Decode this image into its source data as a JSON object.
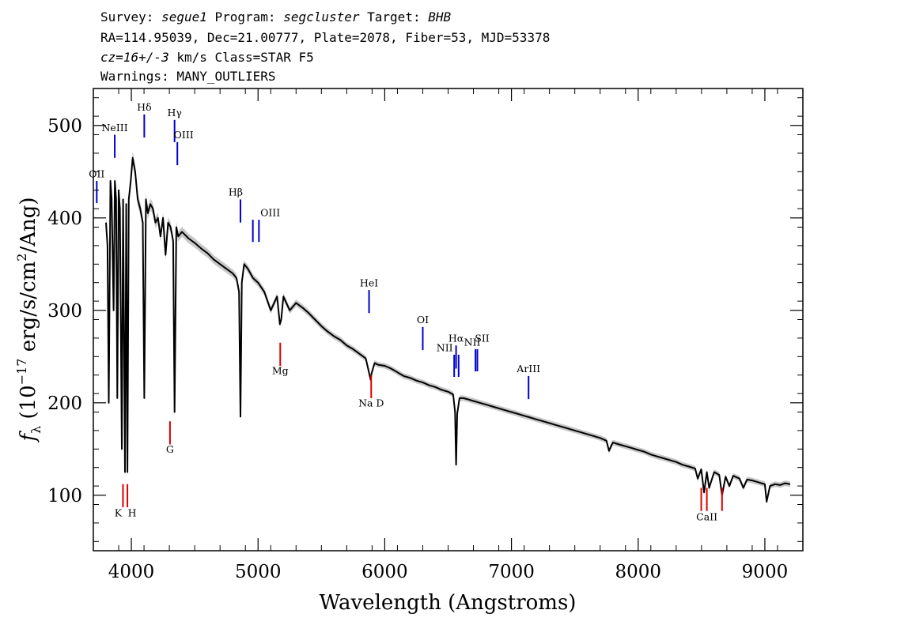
{
  "header": {
    "line1": {
      "survey_label": "Survey: ",
      "survey": "segue1",
      "program_label": " Program: ",
      "program": "segcluster",
      "target_label": " Target: ",
      "target": "BHB"
    },
    "line2": "RA=114.95039, Dec=21.00777, Plate=2078, Fiber=53, MJD=53378",
    "line3": {
      "cz": "cz=16+/-3",
      "rest": " km/s Class=STAR F5"
    },
    "line4": "Warnings: MANY_OUTLIERS"
  },
  "colors": {
    "emission": "#0000cc",
    "absorption": "#dd0000",
    "spectrum": "#000000",
    "error_band": "#b0b0b0"
  },
  "chart_data": {
    "type": "line",
    "title": "",
    "xlabel": "Wavelength (Angstroms)",
    "ylabel": "f_λ (10^-17 erg/s/cm^2/Ang)",
    "ylabel_parts": {
      "f": "f",
      "lambda_sub": "λ",
      "main": " (10",
      "exp1": "−17",
      "middle": " erg/s/cm",
      "exp2": "2",
      "end": "/Ang)"
    },
    "xlim": [
      3700,
      9300
    ],
    "ylim": [
      40,
      540
    ],
    "x_ticks": [
      4000,
      5000,
      6000,
      7000,
      8000,
      9000
    ],
    "y_ticks": [
      100,
      200,
      300,
      400,
      500
    ],
    "grid": false,
    "series": [
      {
        "x": [
          3800,
          3812,
          3822,
          3835,
          3845,
          3860,
          3870,
          3880,
          3889,
          3900,
          3910,
          3925,
          3935,
          3950,
          3960,
          3969,
          3980,
          3995,
          4010,
          4030,
          4050,
          4070,
          4090,
          4102,
          4115,
          4130,
          4150,
          4170,
          4190,
          4210,
          4230,
          4250,
          4270,
          4290,
          4310,
          4330,
          4341,
          4355,
          4370,
          4400,
          4450,
          4500,
          4550,
          4600,
          4650,
          4700,
          4750,
          4800,
          4830,
          4850,
          4861,
          4872,
          4890,
          4920,
          4960,
          5000,
          5050,
          5100,
          5150,
          5172,
          5183,
          5200,
          5250,
          5300,
          5350,
          5400,
          5450,
          5500,
          5550,
          5600,
          5650,
          5700,
          5750,
          5800,
          5850,
          5889,
          5896,
          5920,
          5950,
          6000,
          6050,
          6100,
          6150,
          6200,
          6250,
          6300,
          6350,
          6400,
          6450,
          6500,
          6540,
          6555,
          6563,
          6572,
          6590,
          6620,
          6650,
          6700,
          6750,
          6800,
          6850,
          6900,
          6950,
          7000,
          7050,
          7100,
          7150,
          7200,
          7250,
          7300,
          7350,
          7400,
          7450,
          7500,
          7550,
          7600,
          7650,
          7700,
          7750,
          7770,
          7800,
          7850,
          7900,
          7950,
          8000,
          8050,
          8100,
          8150,
          8200,
          8250,
          8300,
          8350,
          8400,
          8450,
          8470,
          8498,
          8520,
          8542,
          8560,
          8600,
          8640,
          8662,
          8690,
          8720,
          8750,
          8800,
          8830,
          8860,
          8900,
          8950,
          9000,
          9014,
          9040,
          9080,
          9120,
          9160,
          9200
        ],
        "y": [
          395,
          370,
          200,
          440,
          420,
          300,
          440,
          420,
          205,
          430,
          410,
          150,
          420,
          125,
          415,
          125,
          420,
          440,
          465,
          450,
          420,
          410,
          395,
          205,
          420,
          405,
          415,
          410,
          395,
          400,
          380,
          400,
          360,
          395,
          390,
          375,
          190,
          390,
          380,
          385,
          378,
          373,
          367,
          362,
          355,
          350,
          345,
          340,
          335,
          320,
          185,
          330,
          350,
          345,
          335,
          330,
          320,
          300,
          315,
          285,
          290,
          315,
          300,
          308,
          303,
          297,
          290,
          283,
          277,
          272,
          268,
          262,
          258,
          253,
          248,
          225,
          232,
          243,
          241,
          240,
          237,
          233,
          229,
          227,
          224,
          222,
          219,
          217,
          214,
          212,
          209,
          190,
          133,
          188,
          205,
          205,
          204,
          202,
          200,
          198,
          196,
          194,
          192,
          190,
          188,
          186,
          184,
          182,
          180,
          178,
          176,
          174,
          172,
          170,
          168,
          166,
          164,
          162,
          159,
          148,
          157,
          155,
          153,
          151,
          149,
          147,
          144,
          142,
          140,
          138,
          136,
          133,
          131,
          129,
          118,
          128,
          103,
          125,
          108,
          125,
          122,
          100,
          120,
          110,
          121,
          118,
          108,
          117,
          116,
          114,
          112,
          93,
          110,
          112,
          111,
          113,
          112
        ]
      }
    ],
    "error_band": {
      "x": [
        3800,
        4000,
        4500,
        5000,
        6000,
        7000,
        8000,
        9000,
        9200
      ],
      "half_width": [
        8,
        7,
        5,
        4,
        3,
        3,
        3,
        3,
        3
      ]
    },
    "line_markers": [
      {
        "label": "OII",
        "wave": 3727,
        "y_top": 440,
        "y_bottom": 416,
        "color": "emission",
        "label_y": 444,
        "label_dx": 0
      },
      {
        "label": "NeIII",
        "wave": 3869,
        "y_top": 490,
        "y_bottom": 465,
        "color": "emission",
        "label_y": 494,
        "label_dx": 0
      },
      {
        "label": "Hδ",
        "wave": 4102,
        "y_top": 512,
        "y_bottom": 487,
        "color": "emission",
        "label_y": 516,
        "label_dx": 0
      },
      {
        "label": "Hγ",
        "wave": 4341,
        "y_top": 506,
        "y_bottom": 482,
        "color": "emission",
        "label_y": 510,
        "label_dx": 0
      },
      {
        "label": "OIII",
        "wave": 4363,
        "y_top": 482,
        "y_bottom": 457,
        "color": "emission",
        "label_y": 486,
        "label_dx": 8
      },
      {
        "label": "Hβ",
        "wave": 4861,
        "y_top": 420,
        "y_bottom": 395,
        "color": "emission",
        "label_y": 424,
        "label_dx": -6
      },
      {
        "label": "OIII",
        "wave": 4959,
        "y_top": 398,
        "y_bottom": 374,
        "color": "emission",
        "label_y": 402,
        "label_dx": 22
      },
      {
        "label": "",
        "wave": 5007,
        "y_top": 398,
        "y_bottom": 374,
        "color": "emission",
        "label_y": 0,
        "label_dx": 0
      },
      {
        "label": "HeI",
        "wave": 5876,
        "y_top": 322,
        "y_bottom": 297,
        "color": "emission",
        "label_y": 326,
        "label_dx": 0
      },
      {
        "label": "OI",
        "wave": 6300,
        "y_top": 282,
        "y_bottom": 257,
        "color": "emission",
        "label_y": 286,
        "label_dx": 0
      },
      {
        "label": "NII",
        "wave": 6548,
        "y_top": 252,
        "y_bottom": 228,
        "color": "emission",
        "label_y": 256,
        "label_dx": -12
      },
      {
        "label": "Hα",
        "wave": 6563,
        "y_top": 262,
        "y_bottom": 237,
        "color": "emission",
        "label_y": 266,
        "label_dx": 0
      },
      {
        "label": "",
        "wave": 6583,
        "y_top": 252,
        "y_bottom": 228,
        "color": "emission",
        "label_y": 0,
        "label_dx": 0
      },
      {
        "label": "NII",
        "wave": 6716,
        "y_top": 258,
        "y_bottom": 234,
        "color": "emission",
        "label_y": 262,
        "label_dx": -4
      },
      {
        "label": "SII",
        "wave": 6731,
        "y_top": 258,
        "y_bottom": 234,
        "color": "emission",
        "label_y": 266,
        "label_dx": 6
      },
      {
        "label": "ArIII",
        "wave": 7135,
        "y_top": 229,
        "y_bottom": 204,
        "color": "emission",
        "label_y": 233,
        "label_dx": 0
      },
      {
        "label": "Mg",
        "wave": 5175,
        "y_top": 265,
        "y_bottom": 240,
        "color": "absorption",
        "label_y": 231,
        "label_dx": 0
      },
      {
        "label": "Na D",
        "wave": 5893,
        "y_top": 230,
        "y_bottom": 205,
        "color": "absorption",
        "label_y": 196,
        "label_dx": 0
      },
      {
        "label": "G",
        "wave": 4305,
        "y_top": 180,
        "y_bottom": 155,
        "color": "absorption",
        "label_y": 146,
        "label_dx": 0
      },
      {
        "label": "K",
        "wave": 3934,
        "y_top": 112,
        "y_bottom": 87,
        "color": "absorption",
        "label_y": 77,
        "label_dx": -6
      },
      {
        "label": "H",
        "wave": 3969,
        "y_top": 112,
        "y_bottom": 87,
        "color": "absorption",
        "label_y": 77,
        "label_dx": 6
      },
      {
        "label": "",
        "wave": 8498,
        "y_top": 108,
        "y_bottom": 83,
        "color": "absorption",
        "label_y": 0,
        "label_dx": 0
      },
      {
        "label": "CaII",
        "wave": 8542,
        "y_top": 108,
        "y_bottom": 83,
        "color": "absorption",
        "label_y": 73,
        "label_dx": 0
      },
      {
        "label": "",
        "wave": 8662,
        "y_top": 108,
        "y_bottom": 83,
        "color": "absorption",
        "label_y": 0,
        "label_dx": 0
      }
    ]
  }
}
